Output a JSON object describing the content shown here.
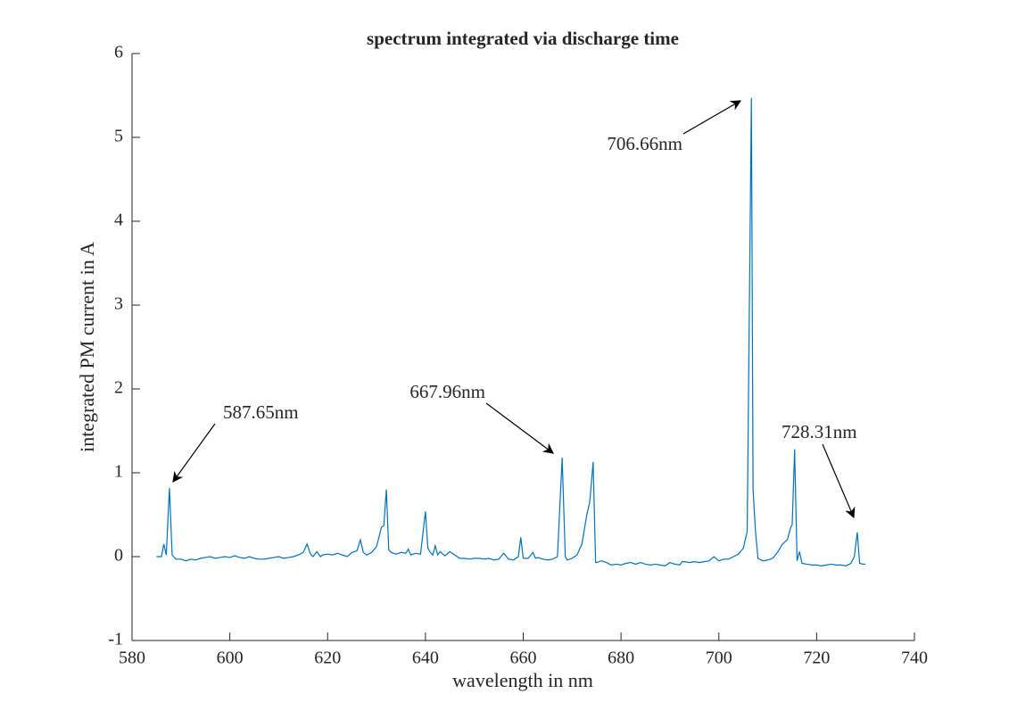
{
  "chart_data": {
    "type": "line",
    "title": "spectrum integrated via discharge time",
    "x_label": "wavelength in nm",
    "y_label": "integrated PM current in A",
    "xlim": [
      580,
      740
    ],
    "ylim": [
      -1,
      6
    ],
    "xticks": [
      580,
      600,
      620,
      640,
      660,
      680,
      700,
      720,
      740
    ],
    "yticks": [
      -1,
      0,
      1,
      2,
      3,
      4,
      5,
      6
    ],
    "grid": false,
    "annotations": [
      "587.65nm",
      "667.96nm",
      "706.66nm",
      "728.31nm"
    ],
    "series": [
      {
        "color": "#0072bd",
        "x": [
          585,
          586,
          586.5,
          587,
          587.65,
          588.2,
          589,
          590,
          591,
          592,
          593,
          594,
          595,
          596,
          597,
          598,
          599,
          600,
          601,
          602,
          603,
          604,
          605,
          606,
          607,
          608,
          609,
          610,
          611,
          612,
          613,
          614,
          615,
          615.8,
          616.5,
          617,
          617.8,
          618.5,
          619,
          620,
          621,
          622,
          623,
          624,
          625,
          626,
          626.7,
          627.3,
          628,
          629,
          630,
          631,
          631.5,
          632,
          632.5,
          633,
          634,
          635,
          636,
          636.5,
          637,
          638,
          639,
          640,
          640.5,
          641,
          641.5,
          642,
          642.5,
          643,
          644,
          645,
          646,
          647,
          648,
          649,
          650,
          651,
          652,
          653,
          654,
          655,
          656,
          657,
          658,
          659,
          659.5,
          660,
          661,
          662,
          662.5,
          663,
          664,
          665,
          666,
          667,
          667.96,
          668.6,
          669,
          670,
          671,
          672,
          673,
          673.6,
          674.3,
          674.8,
          675,
          676,
          677,
          678,
          679,
          680,
          681,
          682,
          683,
          684,
          685,
          686,
          687,
          688,
          689,
          690,
          691,
          692,
          692.5,
          693,
          694,
          695,
          696,
          697,
          698,
          699,
          700,
          701,
          702,
          703,
          704,
          705,
          705.8,
          706.66,
          707,
          707.5,
          708,
          709,
          710,
          711,
          712,
          713,
          714,
          714.7,
          715,
          715.5,
          716,
          716.5,
          717,
          718,
          719,
          720,
          721,
          722,
          723,
          724,
          725,
          726,
          727,
          727.7,
          728.31,
          728.8,
          729.5,
          730
        ],
        "values": [
          0,
          0,
          0.15,
          0.02,
          0.82,
          0.02,
          -0.03,
          -0.03,
          -0.05,
          -0.03,
          -0.04,
          -0.02,
          -0.01,
          0,
          -0.02,
          -0.01,
          0,
          -0.01,
          0.01,
          -0.01,
          -0.02,
          0,
          -0.02,
          -0.03,
          -0.03,
          -0.02,
          -0.01,
          0,
          -0.02,
          -0.01,
          0,
          0.02,
          0.05,
          0.15,
          0.03,
          0,
          0.06,
          0,
          0.02,
          0.03,
          0.02,
          0.04,
          0.02,
          0,
          0.05,
          0.07,
          0.2,
          0.05,
          0.02,
          0.05,
          0.12,
          0.35,
          0.37,
          0.8,
          0.08,
          0.05,
          0.03,
          0.05,
          0.04,
          0.09,
          0.02,
          0.04,
          0.03,
          0.54,
          0.1,
          0.05,
          0.02,
          0.13,
          0.02,
          0.06,
          0.01,
          0.06,
          0.02,
          -0.02,
          -0.02,
          -0.03,
          -0.02,
          -0.02,
          -0.03,
          -0.02,
          -0.04,
          -0.03,
          0.04,
          -0.03,
          -0.04,
          0,
          0.23,
          -0.02,
          -0.02,
          0.05,
          -0.02,
          -0.01,
          -0.03,
          -0.04,
          -0.03,
          0,
          1.18,
          0,
          -0.04,
          -0.02,
          0.02,
          0.15,
          0.5,
          0.65,
          1.13,
          -0.07,
          -0.07,
          -0.05,
          -0.07,
          -0.1,
          -0.09,
          -0.1,
          -0.08,
          -0.07,
          -0.09,
          -0.07,
          -0.09,
          -0.1,
          -0.09,
          -0.1,
          -0.11,
          -0.07,
          -0.09,
          -0.1,
          -0.06,
          -0.06,
          -0.07,
          -0.06,
          -0.07,
          -0.06,
          -0.05,
          0,
          -0.05,
          -0.03,
          -0.03,
          0,
          0.03,
          0.1,
          0.3,
          5.47,
          0.8,
          0.3,
          -0.02,
          -0.05,
          -0.04,
          -0.02,
          0.05,
          0.15,
          0.2,
          0.35,
          0.38,
          1.28,
          -0.05,
          0.06,
          -0.08,
          -0.09,
          -0.1,
          -0.1,
          -0.11,
          -0.1,
          -0.09,
          -0.1,
          -0.1,
          -0.11,
          -0.08,
          0,
          0.29,
          -0.08,
          -0.09,
          -0.09
        ]
      }
    ]
  }
}
